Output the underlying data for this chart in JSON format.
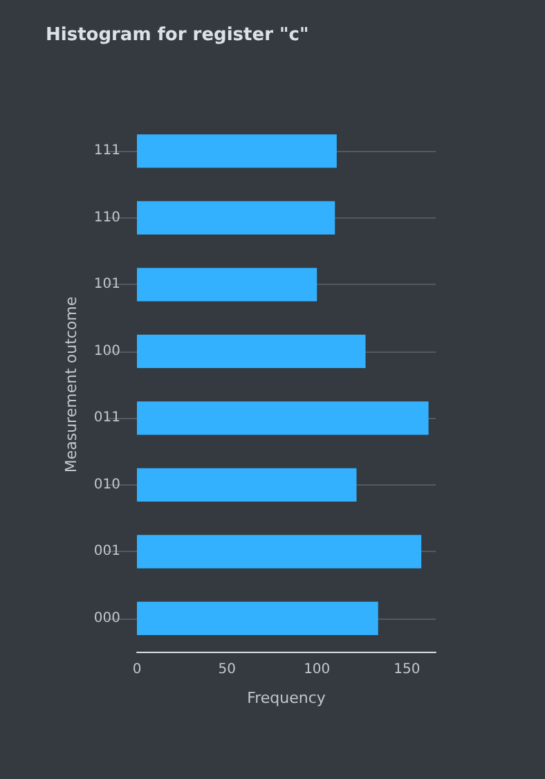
{
  "chart_data": {
    "type": "bar",
    "orientation": "horizontal",
    "title": "Histogram for register \"c\"",
    "xlabel": "Frequency",
    "ylabel": "Measurement outcome",
    "categories": [
      "111",
      "110",
      "101",
      "100",
      "011",
      "010",
      "001",
      "000"
    ],
    "values": [
      111,
      110,
      100,
      127,
      162,
      122,
      158,
      134
    ],
    "color": "#33b1ff",
    "xlim": [
      0,
      166
    ],
    "xticks": [
      0,
      50,
      100,
      150
    ],
    "grid": "y"
  }
}
